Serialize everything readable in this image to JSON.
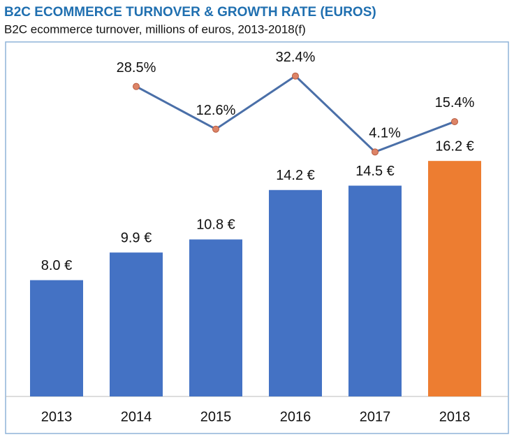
{
  "chart_data": {
    "type": "bar-line",
    "title": "B2C ECOMMERCE TURNOVER & GROWTH RATE (EUROS)",
    "subtitle": "B2C ecommerce turnover, millions of euros, 2013-2018(f)",
    "categories": [
      "2013",
      "2014",
      "2015",
      "2016",
      "2017",
      "2018"
    ],
    "ylim": [
      0,
      24
    ],
    "y2lim": [
      -87,
      43
    ],
    "series": [
      {
        "type": "bar",
        "colors": [
          "#4472c4",
          "#4472c4",
          "#4472c4",
          "#4472c4",
          "#4472c4",
          "#ed7d31"
        ],
        "values": [
          8.0,
          9.9,
          10.8,
          14.2,
          14.5,
          16.2
        ],
        "value_labels": [
          "8.0 €",
          "9.9 €",
          "10.8 €",
          "14.2 €",
          "14.5 €",
          "16.2 €"
        ]
      },
      {
        "type": "line",
        "axis": "y2",
        "color": "#4a6fa8",
        "marker_color": "#dd8467",
        "values": [
          null,
          28.5,
          12.6,
          32.4,
          4.1,
          15.4
        ],
        "value_labels": [
          null,
          "28.5%",
          "12.6%",
          "32.4%",
          "4.1%",
          "15.4%"
        ]
      }
    ]
  }
}
